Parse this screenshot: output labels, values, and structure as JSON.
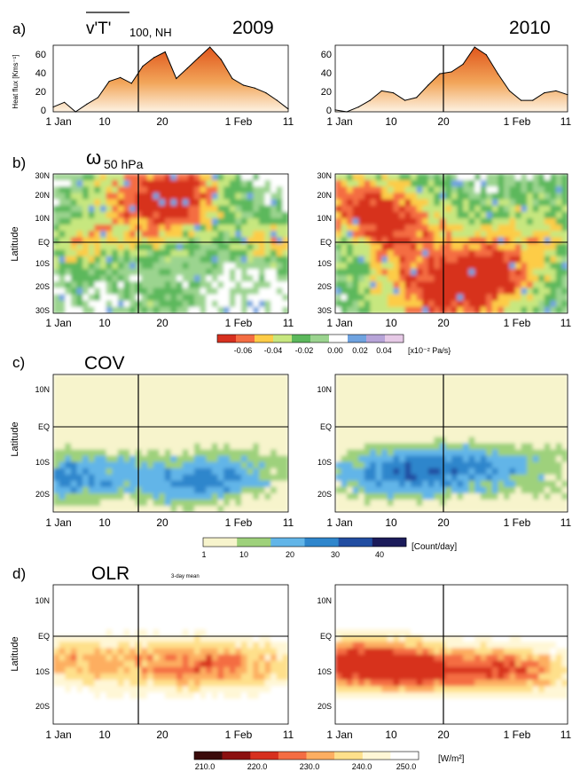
{
  "figure": {
    "panel_a": {
      "letter": "a)",
      "title_var": "v'T'",
      "title_suffix": "100, NH",
      "year_left": "2009",
      "year_right": "2010",
      "ylabel": "Heat flux [Kms⁻¹]"
    },
    "panel_b": {
      "letter": "b)",
      "title_symbol": "ω",
      "title_suffix": "50 hPa",
      "ylabel": "Latitude",
      "colorbar_ticks": [
        "-0.06",
        "-0.04",
        "-0.02",
        "0.00",
        "0.02",
        "0.04"
      ],
      "colorbar_unit": "[x10⁻² Pa/s}"
    },
    "panel_c": {
      "letter": "c)",
      "title": "COV",
      "ylabel": "Latitude",
      "colorbar_ticks": [
        "1",
        "10",
        "20",
        "30",
        "40"
      ],
      "colorbar_unit": "[Count/day]"
    },
    "panel_d": {
      "letter": "d)",
      "title": "OLR",
      "subtitle": "3-day mean",
      "ylabel": "Latitude",
      "colorbar_ticks": [
        "210.0",
        "220.0",
        "230.0",
        "240.0",
        "250.0"
      ],
      "colorbar_unit": "[W/m²]"
    }
  },
  "chart_data": [
    {
      "type": "area",
      "panel": "a) 2009",
      "x": [
        "1 Jan",
        "3 Jan",
        "5 Jan",
        "7 Jan",
        "9 Jan",
        "11 Jan",
        "13 Jan",
        "15 Jan",
        "16 Jan",
        "18 Jan",
        "20 Jan",
        "22 Jan",
        "24 Jan",
        "26 Jan",
        "28 Jan",
        "30 Jan",
        "1 Feb",
        "3 Feb",
        "5 Feb",
        "7 Feb",
        "9 Feb",
        "11 Feb"
      ],
      "values": [
        5,
        10,
        0,
        8,
        15,
        32,
        36,
        30,
        48,
        57,
        63,
        35,
        46,
        57,
        68,
        55,
        35,
        28,
        25,
        20,
        12,
        3
      ],
      "ylim": [
        0,
        70
      ],
      "yticks": [
        "0",
        "20",
        "40",
        "60"
      ],
      "xticks": [
        "1 Jan",
        "10",
        "20",
        "1 Feb",
        "11"
      ],
      "marker_line": "16 Jan"
    },
    {
      "type": "area",
      "panel": "a) 2010",
      "x": [
        "1 Jan",
        "3 Jan",
        "5 Jan",
        "7 Jan",
        "9 Jan",
        "11 Jan",
        "13 Jan",
        "15 Jan",
        "17 Jan",
        "19 Jan",
        "21 Jan",
        "23 Jan",
        "25 Jan",
        "27 Jan",
        "29 Jan",
        "31 Jan",
        "2 Feb",
        "4 Feb",
        "6 Feb",
        "8 Feb",
        "11 Feb"
      ],
      "values": [
        2,
        0,
        5,
        12,
        22,
        20,
        12,
        15,
        28,
        40,
        42,
        50,
        68,
        60,
        40,
        22,
        12,
        12,
        20,
        22,
        18
      ],
      "ylim": [
        0,
        70
      ],
      "yticks": [
        "0",
        "20",
        "40",
        "60"
      ],
      "xticks": [
        "1 Jan",
        "10",
        "20",
        "1 Feb",
        "11"
      ],
      "marker_line": "20 Jan"
    },
    {
      "type": "heatmap",
      "panel": "b) omega 50 hPa",
      "yticks": [
        "30N",
        "20N",
        "10N",
        "EQ",
        "10S",
        "20S",
        "30S"
      ],
      "xticks": [
        "1 Jan",
        "10",
        "20",
        "1 Feb",
        "11"
      ],
      "colorscale": [
        "#d7301f",
        "#f46d43",
        "#fdcc47",
        "#c7e77f",
        "#5cb85c",
        "#9bd48f",
        "#ffffff",
        "#6fa3e0",
        "#b7a4d8",
        "#e6c9e6"
      ],
      "clim": [
        -0.07,
        0.05
      ],
      "marker_line_2009": "16 Jan",
      "marker_line_2010": "20 Jan"
    },
    {
      "type": "heatmap",
      "panel": "c) COV",
      "yticks": [
        "10N",
        "EQ",
        "10S",
        "20S"
      ],
      "xticks": [
        "1 Jan",
        "10",
        "20",
        "1 Feb",
        "11"
      ],
      "colorscale": [
        "#f7f4cc",
        "#9ed17b",
        "#62b5e8",
        "#2f86cc",
        "#214da1",
        "#1b1b5a"
      ],
      "clim": [
        1,
        45
      ]
    },
    {
      "type": "heatmap",
      "panel": "d) OLR 3-day mean",
      "yticks": [
        "10N",
        "EQ",
        "10S",
        "20S"
      ],
      "xticks": [
        "1 Jan",
        "10",
        "20",
        "1 Feb",
        "11"
      ],
      "colorscale": [
        "#3a0a0a",
        "#8b0f0f",
        "#d7301f",
        "#f46d43",
        "#fdae61",
        "#fee08b",
        "#fff7d6",
        "#ffffff"
      ],
      "clim": [
        210,
        252
      ]
    }
  ]
}
